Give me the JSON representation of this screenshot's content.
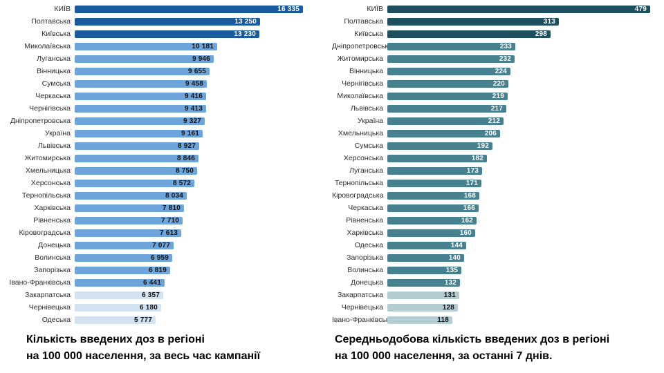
{
  "page": {
    "background": "#ffffff"
  },
  "chart_data": [
    {
      "type": "bar",
      "orientation": "horizontal",
      "title": "Кількість введених доз в регіоні на 100 000 населення, за весь час кампанії",
      "caption_lines": [
        "Кількість введених доз в регіоні",
        "на 100 000 населення, за весь час кампанії"
      ],
      "xlim": [
        0,
        16335
      ],
      "grid": false,
      "legend": "none",
      "categories": [
        "КИЇВ",
        "Полтавська",
        "Київська",
        "Миколаївська",
        "Луганська",
        "Вінницька",
        "Сумська",
        "Черкаська",
        "Чернігівська",
        "Дніпропетровська",
        "Україна",
        "Львівська",
        "Житомирська",
        "Хмельницька",
        "Херсонська",
        "Тернопільська",
        "Харківська",
        "Рівненська",
        "Кіровоградська",
        "Донецька",
        "Волинська",
        "Запорізька",
        "Івано-Франківська",
        "Закарпатська",
        "Чернівецька",
        "Одеська"
      ],
      "values": [
        16335,
        13250,
        13230,
        10181,
        9946,
        9655,
        9458,
        9416,
        9413,
        9327,
        9161,
        8927,
        8846,
        8750,
        8572,
        8034,
        7810,
        7710,
        7613,
        7077,
        6959,
        6819,
        6441,
        6357,
        6180,
        5777
      ],
      "value_labels": [
        "16 335",
        "13 250",
        "13 230",
        "10 181",
        "9 946",
        "9 655",
        "9 458",
        "9 416",
        "9 413",
        "9 327",
        "9 161",
        "8 927",
        "8 846",
        "8 750",
        "8 572",
        "8 034",
        "7 810",
        "7 710",
        "7 613",
        "7 077",
        "6 959",
        "6 819",
        "6 441",
        "6 357",
        "6 180",
        "5 777"
      ],
      "tiers": [
        "dark",
        "dark",
        "dark",
        "mid",
        "mid",
        "mid",
        "mid",
        "mid",
        "mid",
        "mid",
        "mid",
        "mid",
        "mid",
        "mid",
        "mid",
        "mid",
        "mid",
        "mid",
        "mid",
        "mid",
        "mid",
        "mid",
        "mid",
        "light",
        "light",
        "light"
      ],
      "palette": {
        "dark": "#1a5a9e",
        "mid": "#6da5da",
        "light": "#d4e3f2"
      },
      "value_text_colors": {
        "dark": "#ffffff",
        "mid": "#111111",
        "light": "#111111"
      }
    },
    {
      "type": "bar",
      "orientation": "horizontal",
      "title": "Середньодобова кількість введених доз в регіоні на 100 000 населення, за останні 7 днів.",
      "caption_lines": [
        "Середньодобова кількість введених доз в регіоні",
        "на 100 000 населення, за останні 7 днів."
      ],
      "xlim": [
        0,
        479
      ],
      "grid": false,
      "legend": "none",
      "categories": [
        "КИЇВ",
        "Полтавська",
        "Київська",
        "Дніпропетровська",
        "Житомирська",
        "Вінницька",
        "Чернігівська",
        "Миколаївська",
        "Львівська",
        "Україна",
        "Хмельницька",
        "Сумська",
        "Херсонська",
        "Луганська",
        "Тернопільська",
        "Кіровоградська",
        "Черкаська",
        "Рівненська",
        "Харківська",
        "Одеська",
        "Запорізька",
        "Волинська",
        "Донецька",
        "Закарпатська",
        "Чернівецька",
        "Івано-Франківська"
      ],
      "values": [
        479,
        313,
        298,
        233,
        232,
        224,
        220,
        219,
        217,
        212,
        206,
        192,
        182,
        173,
        171,
        168,
        166,
        162,
        160,
        144,
        140,
        135,
        132,
        131,
        128,
        118
      ],
      "value_labels": [
        "479",
        "313",
        "298",
        "233",
        "232",
        "224",
        "220",
        "219",
        "217",
        "212",
        "206",
        "192",
        "182",
        "173",
        "171",
        "168",
        "166",
        "162",
        "160",
        "144",
        "140",
        "135",
        "132",
        "131",
        "128",
        "118"
      ],
      "tiers": [
        "dark",
        "dark",
        "dark",
        "mid",
        "mid",
        "mid",
        "mid",
        "mid",
        "mid",
        "mid",
        "mid",
        "mid",
        "mid",
        "mid",
        "mid",
        "mid",
        "mid",
        "mid",
        "mid",
        "mid",
        "mid",
        "mid",
        "mid",
        "light",
        "light",
        "light"
      ],
      "palette": {
        "dark": "#1d4f5e",
        "mid": "#47818f",
        "light": "#b4cdd3"
      },
      "value_text_colors": {
        "dark": "#ffffff",
        "mid": "#ffffff",
        "light": "#111111"
      }
    }
  ]
}
